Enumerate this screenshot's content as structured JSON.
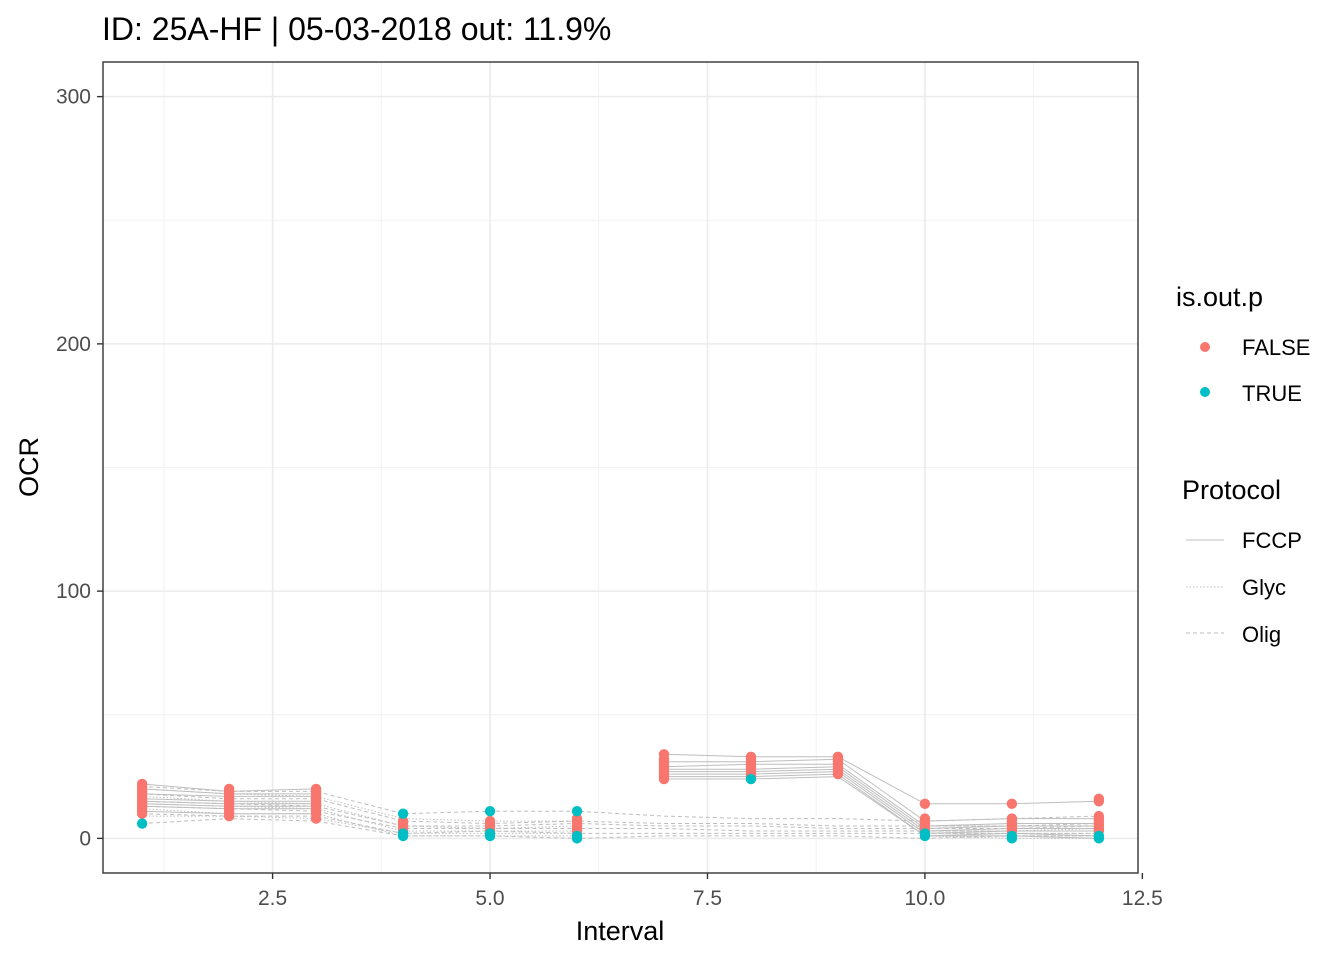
{
  "chart_data": {
    "type": "line",
    "title": "ID: 25A-HF | 05-03-2018  out: 11.9%",
    "xlabel": "Interval",
    "ylabel": "OCR",
    "xlim": [
      0.55,
      12.45
    ],
    "ylim": [
      -14,
      314
    ],
    "x_ticks": [
      2.5,
      5.0,
      7.5,
      10.0,
      12.5
    ],
    "x_tick_labels": [
      "2.5",
      "5.0",
      "7.5",
      "10.0",
      "12.5"
    ],
    "y_ticks": [
      0,
      100,
      200,
      300
    ],
    "y_tick_labels": [
      "0",
      "100",
      "200",
      "300"
    ],
    "grid": true,
    "line_color": "#bebebe",
    "legend_position": "right",
    "legend": {
      "color": {
        "title": "is.out.p",
        "items": [
          {
            "label": "FALSE",
            "color": "#F8766D"
          },
          {
            "label": "TRUE",
            "color": "#00BFC4"
          }
        ]
      },
      "linetype": {
        "title": "Protocol",
        "items": [
          {
            "label": "FCCP",
            "dash": "solid"
          },
          {
            "label": "Glyc",
            "dash": "dotted"
          },
          {
            "label": "Olig",
            "dash": "dashed"
          }
        ]
      }
    },
    "series": [
      {
        "protocol": "FCCP",
        "values": [
          22,
          19,
          20,
          null,
          null,
          null,
          34,
          33,
          33,
          14,
          14,
          15
        ]
      },
      {
        "protocol": "FCCP",
        "values": [
          20,
          18,
          18,
          null,
          null,
          null,
          31,
          31,
          32,
          7,
          8,
          8
        ]
      },
      {
        "protocol": "FCCP",
        "values": [
          18,
          17,
          17,
          null,
          null,
          null,
          29,
          30,
          30,
          5,
          6,
          6
        ]
      },
      {
        "protocol": "FCCP",
        "values": [
          16,
          15,
          15,
          null,
          null,
          null,
          28,
          28,
          29,
          4,
          5,
          5
        ]
      },
      {
        "protocol": "FCCP",
        "values": [
          15,
          14,
          14,
          null,
          null,
          null,
          27,
          27,
          28,
          3,
          4,
          4
        ]
      },
      {
        "protocol": "FCCP",
        "values": [
          14,
          13,
          13,
          null,
          null,
          null,
          26,
          26,
          27,
          2,
          3,
          3
        ]
      },
      {
        "protocol": "FCCP",
        "values": [
          13,
          12,
          12,
          null,
          null,
          null,
          25,
          25,
          26,
          1,
          2,
          1
        ]
      },
      {
        "protocol": "FCCP",
        "values": [
          11,
          10,
          10,
          null,
          null,
          null,
          24,
          24,
          25,
          1,
          1,
          0
        ]
      },
      {
        "protocol": "Glyc",
        "values": [
          20,
          18,
          17,
          8,
          7,
          7,
          null,
          null,
          null,
          5,
          5,
          5
        ]
      },
      {
        "protocol": "Glyc",
        "values": [
          17,
          15,
          14,
          5,
          4,
          5,
          null,
          null,
          null,
          3,
          3,
          4
        ]
      },
      {
        "protocol": "Glyc",
        "values": [
          14,
          13,
          12,
          3,
          3,
          3,
          null,
          null,
          null,
          2,
          2,
          2
        ]
      },
      {
        "protocol": "Glyc",
        "values": [
          12,
          10,
          10,
          1,
          1,
          1,
          null,
          null,
          null,
          1,
          1,
          1
        ]
      },
      {
        "protocol": "Glyc",
        "values": [
          9,
          9,
          8,
          2,
          2,
          2,
          null,
          null,
          null,
          1,
          0,
          0
        ]
      },
      {
        "protocol": "Olig",
        "values": [
          21,
          19,
          19,
          10,
          11,
          11,
          9,
          8,
          8,
          7,
          8,
          9
        ]
      },
      {
        "protocol": "Olig",
        "values": [
          18,
          16,
          16,
          7,
          6,
          7,
          6,
          6,
          5,
          5,
          5,
          6
        ]
      },
      {
        "protocol": "Olig",
        "values": [
          15,
          14,
          13,
          5,
          5,
          6,
          5,
          5,
          4,
          4,
          4,
          5
        ]
      },
      {
        "protocol": "Olig",
        "values": [
          13,
          12,
          11,
          4,
          4,
          4,
          4,
          3,
          3,
          3,
          3,
          3
        ]
      },
      {
        "protocol": "Olig",
        "values": [
          10,
          9,
          9,
          2,
          3,
          2,
          2,
          2,
          2,
          2,
          2,
          2
        ]
      },
      {
        "protocol": "Olig",
        "values": [
          6,
          8,
          7,
          1,
          1,
          0,
          1,
          1,
          1,
          0,
          1,
          1
        ]
      }
    ],
    "points": [
      {
        "x": 1,
        "y": [
          22,
          21,
          20,
          19,
          18,
          17,
          16,
          15,
          14,
          13,
          12,
          11,
          10
        ],
        "out": false
      },
      {
        "x": 1,
        "y": [
          6
        ],
        "out": true
      },
      {
        "x": 2,
        "y": [
          20,
          19,
          18,
          17,
          16,
          15,
          14,
          13,
          12,
          11,
          10,
          9
        ],
        "out": false
      },
      {
        "x": 3,
        "y": [
          20,
          19,
          18,
          17,
          16,
          15,
          14,
          13,
          12,
          11,
          10,
          8
        ],
        "out": false
      },
      {
        "x": 4,
        "y": [
          7,
          6,
          5,
          4,
          3
        ],
        "out": false
      },
      {
        "x": 4,
        "y": [
          10,
          2,
          1
        ],
        "out": true
      },
      {
        "x": 5,
        "y": [
          7,
          6,
          5,
          4,
          3
        ],
        "out": false
      },
      {
        "x": 5,
        "y": [
          11,
          2,
          1
        ],
        "out": true
      },
      {
        "x": 6,
        "y": [
          8,
          7,
          6,
          5,
          4,
          3
        ],
        "out": false
      },
      {
        "x": 6,
        "y": [
          11,
          1,
          0
        ],
        "out": true
      },
      {
        "x": 7,
        "y": [
          34,
          32,
          31,
          30,
          29,
          28,
          27,
          26,
          25,
          24
        ],
        "out": false
      },
      {
        "x": 8,
        "y": [
          33,
          32,
          31,
          30,
          29,
          28,
          27,
          26,
          25
        ],
        "out": false
      },
      {
        "x": 8,
        "y": [
          24
        ],
        "out": true
      },
      {
        "x": 9,
        "y": [
          33,
          32,
          31,
          30,
          29,
          28,
          27,
          26
        ],
        "out": false
      },
      {
        "x": 10,
        "y": [
          14,
          8,
          7,
          6,
          5,
          4,
          3
        ],
        "out": false
      },
      {
        "x": 10,
        "y": [
          2,
          1
        ],
        "out": true
      },
      {
        "x": 11,
        "y": [
          14,
          8,
          7,
          6,
          5,
          4,
          3
        ],
        "out": false
      },
      {
        "x": 11,
        "y": [
          1,
          0
        ],
        "out": true
      },
      {
        "x": 12,
        "y": [
          16,
          15,
          9,
          8,
          7,
          6,
          5,
          4,
          3
        ],
        "out": false
      },
      {
        "x": 12,
        "y": [
          1,
          0
        ],
        "out": true
      }
    ]
  }
}
